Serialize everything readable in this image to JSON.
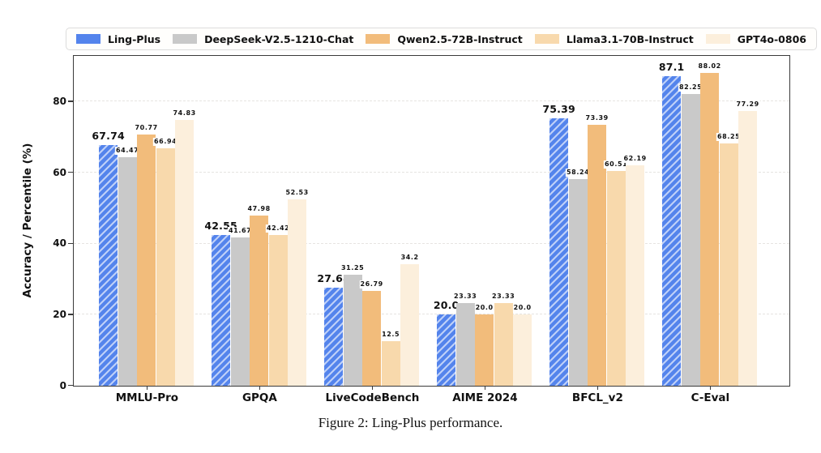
{
  "figure": {
    "caption": "Figure 2: Ling-Plus performance."
  },
  "chart_data": {
    "type": "bar",
    "title": "",
    "ylabel": "Accuracy / Percentile (%)",
    "xlabel": "",
    "categories": [
      "MMLU-Pro",
      "GPQA",
      "LiveCodeBench",
      "AIME 2024",
      "BFCL_v2",
      "C-Eval"
    ],
    "series": [
      {
        "name": "Ling-Plus",
        "color": "#5484EC",
        "hatch": "//",
        "emphasized": true,
        "values": [
          67.74,
          42.55,
          27.68,
          20.0,
          75.39,
          87.1
        ],
        "labels": [
          "67.74",
          "42.55",
          "27.68",
          "20.0",
          "75.39",
          "87.1"
        ]
      },
      {
        "name": "DeepSeek-V2.5-1210-Chat",
        "color": "#C9C9C9",
        "hatch": "",
        "emphasized": false,
        "values": [
          64.47,
          41.67,
          31.25,
          23.33,
          58.24,
          82.25
        ],
        "labels": [
          "64.47",
          "41.67",
          "31.25",
          "23.33",
          "58.24",
          "82.25"
        ]
      },
      {
        "name": "Qwen2.5-72B-Instruct",
        "color": "#F2BC7B",
        "hatch": "",
        "emphasized": false,
        "values": [
          70.77,
          47.98,
          26.79,
          20.0,
          73.39,
          88.02
        ],
        "labels": [
          "70.77",
          "47.98",
          "26.79",
          "20.0",
          "73.39",
          "88.02"
        ]
      },
      {
        "name": "Llama3.1-70B-Instruct",
        "color": "#F8D9AC",
        "hatch": "",
        "emphasized": false,
        "values": [
          66.94,
          42.42,
          12.5,
          23.33,
          60.51,
          68.25
        ],
        "labels": [
          "66.94",
          "42.42",
          "12.5",
          "23.33",
          "60.51",
          "68.25"
        ]
      },
      {
        "name": "GPT4o-0806",
        "color": "#FCEFDC",
        "hatch": "",
        "emphasized": false,
        "values": [
          74.83,
          52.53,
          34.2,
          20.0,
          62.19,
          77.29
        ],
        "labels": [
          "74.83",
          "52.53",
          "34.2",
          "20.0",
          "62.19",
          "77.29"
        ]
      }
    ],
    "yticks": [
      "0",
      "20",
      "40",
      "60",
      "80"
    ],
    "ytick_values": [
      0,
      20,
      40,
      60,
      80
    ],
    "ylim": [
      0,
      92.7
    ],
    "grid": "horizontal-dashed",
    "legend_position": "top"
  }
}
